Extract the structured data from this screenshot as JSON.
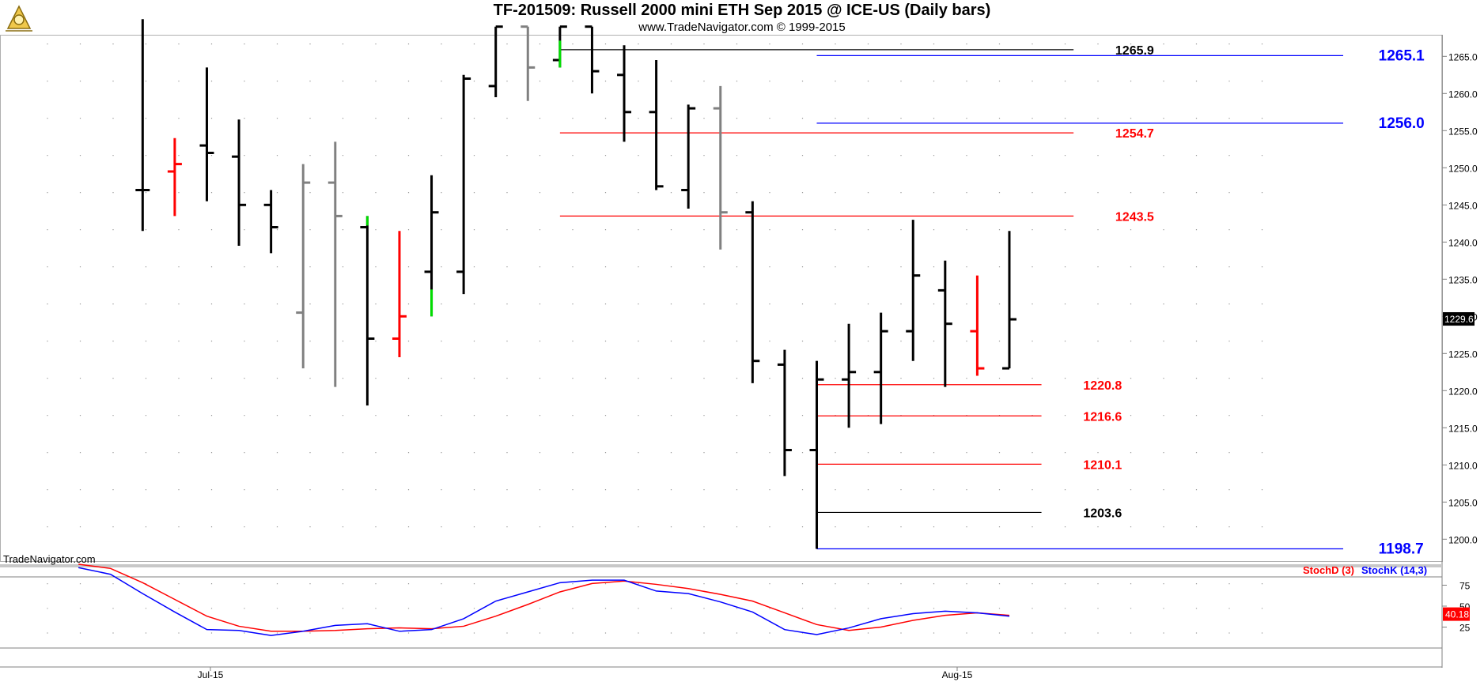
{
  "header": {
    "title": "TF-201509:  Russell 2000 mini ETH Sep 2015 @ ICE-US  (Daily bars)",
    "subtitle": "www.TradeNavigator.com © 1999-2015",
    "watermark": "TradeNavigator.com"
  },
  "colors": {
    "up_bar": "#000000",
    "neutral_bar": "#808080",
    "down_bar": "#ff0000",
    "highlight": "#00dd00",
    "level_black": "#000000",
    "level_red": "#ff0000",
    "level_blue": "#0000ff",
    "stoch_k": "#0000ff",
    "stoch_d": "#ff0000"
  },
  "chart_data": [
    {
      "type": "ohlc",
      "title": "TF-201509:  Russell 2000 mini ETH Sep 2015 @ ICE-US  (Daily bars)",
      "x_tick_labels": [
        "Jul-15",
        "Aug-15"
      ],
      "y_tick_labels": [
        "1265.0",
        "1260.0",
        "1255.0",
        "1250.0",
        "1245.0",
        "1240.0",
        "1235.0",
        "1230.0",
        "1225.0",
        "1220.0",
        "1215.0",
        "1210.0",
        "1205.0",
        "1200.0"
      ],
      "ylim": [
        1196.5,
        1269.0
      ],
      "last_price": "1229.6",
      "bars": [
        {
          "i": 4,
          "open": 1247.0,
          "high": 1270.0,
          "low": 1241.5,
          "close": 1247.0,
          "color": "black"
        },
        {
          "i": 5,
          "open": 1249.5,
          "high": 1254.0,
          "low": 1243.5,
          "close": 1250.5,
          "color": "red"
        },
        {
          "i": 6,
          "open": 1253.0,
          "high": 1263.5,
          "low": 1245.5,
          "close": 1252.0,
          "color": "black"
        },
        {
          "i": 7,
          "open": 1251.5,
          "high": 1256.5,
          "low": 1239.5,
          "close": 1245.0,
          "color": "black"
        },
        {
          "i": 8,
          "open": 1245.0,
          "high": 1247.0,
          "low": 1238.5,
          "close": 1242.0,
          "color": "black"
        },
        {
          "i": 9,
          "open": 1230.5,
          "high": 1250.5,
          "low": 1223.0,
          "close": 1248.0,
          "color": "gray"
        },
        {
          "i": 10,
          "open": 1248.0,
          "high": 1253.5,
          "low": 1220.5,
          "close": 1243.5,
          "color": "gray"
        },
        {
          "i": 11,
          "open": 1242.0,
          "high": 1243.5,
          "low": 1218.0,
          "close": 1227.0,
          "color": "black",
          "green_top": true
        },
        {
          "i": 12,
          "open": 1227.0,
          "high": 1241.5,
          "low": 1224.5,
          "close": 1230.0,
          "color": "red"
        },
        {
          "i": 13,
          "open": 1236.0,
          "high": 1249.0,
          "low": 1230.0,
          "close": 1244.0,
          "color": "black",
          "green_bottom": true
        },
        {
          "i": 14,
          "open": 1236.0,
          "high": 1262.5,
          "low": 1233.0,
          "close": 1262.0,
          "color": "black"
        },
        {
          "i": 15,
          "open": 1261.0,
          "high": 1269.0,
          "low": 1259.5,
          "close": 1269.0,
          "color": "black"
        },
        {
          "i": 16,
          "open": 1269.0,
          "high": 1269.0,
          "low": 1259.0,
          "close": 1263.5,
          "color": "gray"
        },
        {
          "i": 17,
          "open": 1264.5,
          "high": 1269.0,
          "low": 1263.5,
          "close": 1269.0,
          "color": "black",
          "green_bottom": true
        },
        {
          "i": 18,
          "open": 1269.0,
          "high": 1269.0,
          "low": 1260.0,
          "close": 1263.0,
          "color": "black"
        },
        {
          "i": 19,
          "open": 1262.5,
          "high": 1266.5,
          "low": 1253.5,
          "close": 1257.5,
          "color": "black"
        },
        {
          "i": 20,
          "open": 1257.5,
          "high": 1264.5,
          "low": 1247.0,
          "close": 1247.5,
          "color": "black"
        },
        {
          "i": 21,
          "open": 1247.0,
          "high": 1258.5,
          "low": 1244.5,
          "close": 1258.0,
          "color": "black"
        },
        {
          "i": 22,
          "open": 1258.0,
          "high": 1261.0,
          "low": 1239.0,
          "close": 1244.0,
          "color": "gray"
        },
        {
          "i": 23,
          "open": 1244.0,
          "high": 1245.5,
          "low": 1221.0,
          "close": 1224.0,
          "color": "black"
        },
        {
          "i": 24,
          "open": 1223.5,
          "high": 1225.5,
          "low": 1208.5,
          "close": 1212.0,
          "color": "black"
        },
        {
          "i": 25,
          "open": 1212.0,
          "high": 1224.0,
          "low": 1198.7,
          "close": 1221.5,
          "color": "black"
        },
        {
          "i": 26,
          "open": 1221.5,
          "high": 1229.0,
          "low": 1215.0,
          "close": 1222.5,
          "color": "black"
        },
        {
          "i": 27,
          "open": 1222.5,
          "high": 1230.5,
          "low": 1215.5,
          "close": 1228.0,
          "color": "black"
        },
        {
          "i": 28,
          "open": 1228.0,
          "high": 1243.0,
          "low": 1224.0,
          "close": 1235.5,
          "color": "black"
        },
        {
          "i": 29,
          "open": 1233.5,
          "high": 1237.5,
          "low": 1220.5,
          "close": 1229.0,
          "color": "black"
        },
        {
          "i": 30,
          "open": 1228.0,
          "high": 1235.5,
          "low": 1222.0,
          "close": 1223.0,
          "color": "red"
        },
        {
          "i": 31,
          "open": 1223.0,
          "high": 1241.5,
          "low": 1223.0,
          "close": 1229.6,
          "color": "black"
        }
      ],
      "levels": [
        {
          "label": "1265.9",
          "value": 1265.9,
          "color": "black",
          "x_from": 17,
          "x_to": 33.0,
          "label_x": 34.3
        },
        {
          "label": "1265.1",
          "value": 1265.1,
          "color": "blue",
          "x_from": 25,
          "x_to": 41.4,
          "label_x": 42.5
        },
        {
          "label": "1256.0",
          "value": 1256.0,
          "color": "blue",
          "x_from": 25,
          "x_to": 41.4,
          "label_x": 42.5
        },
        {
          "label": "1254.7",
          "value": 1254.7,
          "color": "red",
          "x_from": 17,
          "x_to": 33.0,
          "label_x": 34.3
        },
        {
          "label": "1243.5",
          "value": 1243.5,
          "color": "red",
          "x_from": 17,
          "x_to": 33.0,
          "label_x": 34.3
        },
        {
          "label": "1220.8",
          "value": 1220.8,
          "color": "red",
          "x_from": 25,
          "x_to": 32.0,
          "label_x": 33.3
        },
        {
          "label": "1216.6",
          "value": 1216.6,
          "color": "red",
          "x_from": 25,
          "x_to": 32.0,
          "label_x": 33.3
        },
        {
          "label": "1210.1",
          "value": 1210.1,
          "color": "red",
          "x_from": 25,
          "x_to": 32.0,
          "label_x": 33.3
        },
        {
          "label": "1203.6",
          "value": 1203.6,
          "color": "black",
          "x_from": 25,
          "x_to": 32.0,
          "label_x": 33.3
        },
        {
          "label": "1198.7",
          "value": 1198.7,
          "color": "blue",
          "x_from": 25,
          "x_to": 41.4,
          "label_x": 42.5
        }
      ]
    },
    {
      "type": "line",
      "legend": [
        "StochD (3)",
        "StochK (14,3)"
      ],
      "y_tick_labels": [
        "75",
        "50",
        "25"
      ],
      "last_value": "40.18",
      "series": [
        {
          "name": "StochD (3)",
          "color": "red",
          "points": [
            [
              2,
              100
            ],
            [
              3,
              95
            ],
            [
              4,
              78
            ],
            [
              5,
              58
            ],
            [
              6,
              38
            ],
            [
              7,
              26
            ],
            [
              8,
              20
            ],
            [
              9,
              20
            ],
            [
              10,
              21
            ],
            [
              11,
              23
            ],
            [
              12,
              24
            ],
            [
              13,
              23
            ],
            [
              14,
              26
            ],
            [
              15,
              38
            ],
            [
              16,
              52
            ],
            [
              17,
              67
            ],
            [
              18,
              77
            ],
            [
              19,
              80
            ],
            [
              20,
              76
            ],
            [
              21,
              71
            ],
            [
              22,
              64
            ],
            [
              23,
              56
            ],
            [
              24,
              42
            ],
            [
              25,
              28
            ],
            [
              26,
              21
            ],
            [
              27,
              25
            ],
            [
              28,
              33
            ],
            [
              29,
              39
            ],
            [
              30,
              42
            ],
            [
              31,
              39
            ]
          ]
        },
        {
          "name": "StochK (14,3)",
          "color": "blue",
          "points": [
            [
              2,
              96
            ],
            [
              3,
              88
            ],
            [
              4,
              65
            ],
            [
              5,
              43
            ],
            [
              6,
              22
            ],
            [
              7,
              21
            ],
            [
              8,
              15
            ],
            [
              9,
              20
            ],
            [
              10,
              27
            ],
            [
              11,
              29
            ],
            [
              12,
              20
            ],
            [
              13,
              22
            ],
            [
              14,
              35
            ],
            [
              15,
              56
            ],
            [
              16,
              67
            ],
            [
              17,
              78
            ],
            [
              18,
              81
            ],
            [
              19,
              81
            ],
            [
              20,
              68
            ],
            [
              21,
              65
            ],
            [
              22,
              55
            ],
            [
              23,
              43
            ],
            [
              24,
              22
            ],
            [
              25,
              16
            ],
            [
              26,
              24
            ],
            [
              27,
              35
            ],
            [
              28,
              41
            ],
            [
              29,
              44
            ],
            [
              30,
              42
            ],
            [
              31,
              38
            ]
          ]
        }
      ]
    }
  ]
}
